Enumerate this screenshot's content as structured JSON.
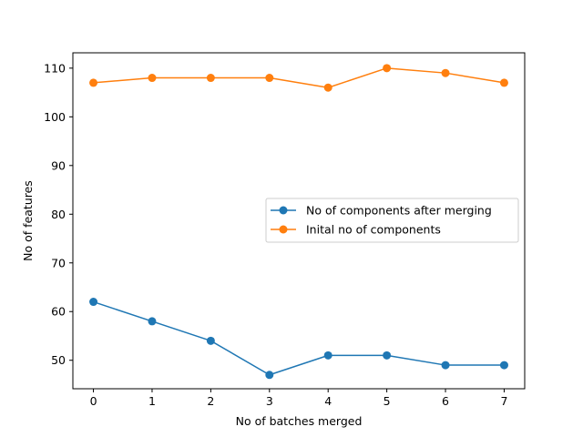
{
  "chart_data": {
    "type": "line",
    "title": "",
    "xlabel": "No of batches merged",
    "ylabel": "No of features",
    "x": [
      0,
      1,
      2,
      3,
      4,
      5,
      6,
      7
    ],
    "xlim": [
      -0.35,
      7.35
    ],
    "ylim": [
      44.15,
      113.15
    ],
    "xticks": [
      0,
      1,
      2,
      3,
      4,
      5,
      6,
      7
    ],
    "yticks": [
      50,
      60,
      70,
      80,
      90,
      100,
      110
    ],
    "grid": false,
    "legend_position": "center-right",
    "series": [
      {
        "name": "No of components after merging",
        "color": "#1f77b4",
        "values": [
          62,
          58,
          54,
          47,
          51,
          51,
          49,
          49
        ]
      },
      {
        "name": "Inital no of components",
        "color": "#ff7f0e",
        "values": [
          107,
          108,
          108,
          108,
          106,
          110,
          109,
          107
        ]
      }
    ]
  }
}
